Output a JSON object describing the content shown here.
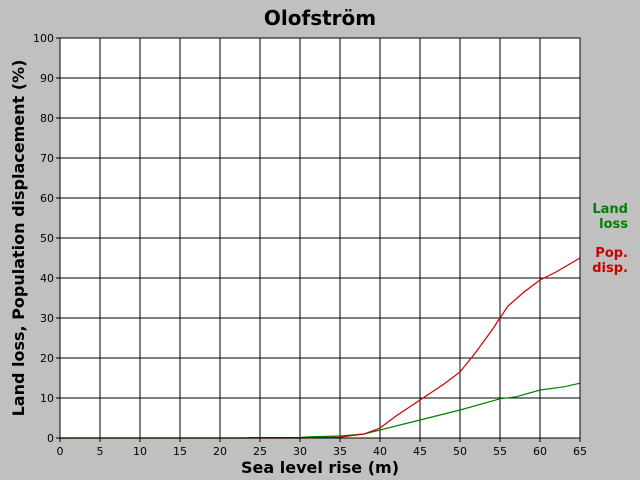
{
  "chart_data": {
    "type": "line",
    "title": "Olofström",
    "xlabel": "Sea level rise (m)",
    "ylabel": "Land loss, Population displacement (%)",
    "xlim": [
      0,
      65
    ],
    "ylim": [
      0,
      100
    ],
    "xticks": [
      0,
      5,
      10,
      15,
      20,
      25,
      30,
      35,
      40,
      45,
      50,
      55,
      60,
      65
    ],
    "yticks": [
      0,
      10,
      20,
      30,
      40,
      50,
      60,
      70,
      80,
      90,
      100
    ],
    "grid": true,
    "legend_position": "right",
    "series": [
      {
        "name": "Land loss",
        "color": "#008000",
        "legend_lines": [
          "Land",
          "loss"
        ],
        "x": [
          0,
          23,
          24,
          30,
          31,
          35,
          38,
          40,
          45,
          50,
          55,
          57,
          60,
          63,
          65
        ],
        "y": [
          0,
          0,
          0.1,
          0.1,
          0.3,
          0.5,
          1.0,
          2.0,
          4.5,
          7.0,
          9.8,
          10.3,
          12.0,
          12.8,
          13.7
        ]
      },
      {
        "name": "Pop. disp.",
        "color": "#cc0000",
        "legend_lines": [
          "Pop.",
          "disp."
        ],
        "x": [
          0,
          30,
          35,
          38,
          40,
          42,
          45,
          48,
          50,
          52,
          54,
          56,
          58,
          60,
          62,
          65
        ],
        "y": [
          0,
          0,
          0.2,
          1.0,
          2.5,
          5.5,
          9.5,
          13.5,
          16.5,
          21.5,
          27.0,
          33.0,
          36.5,
          39.5,
          41.5,
          45.0
        ]
      }
    ]
  }
}
